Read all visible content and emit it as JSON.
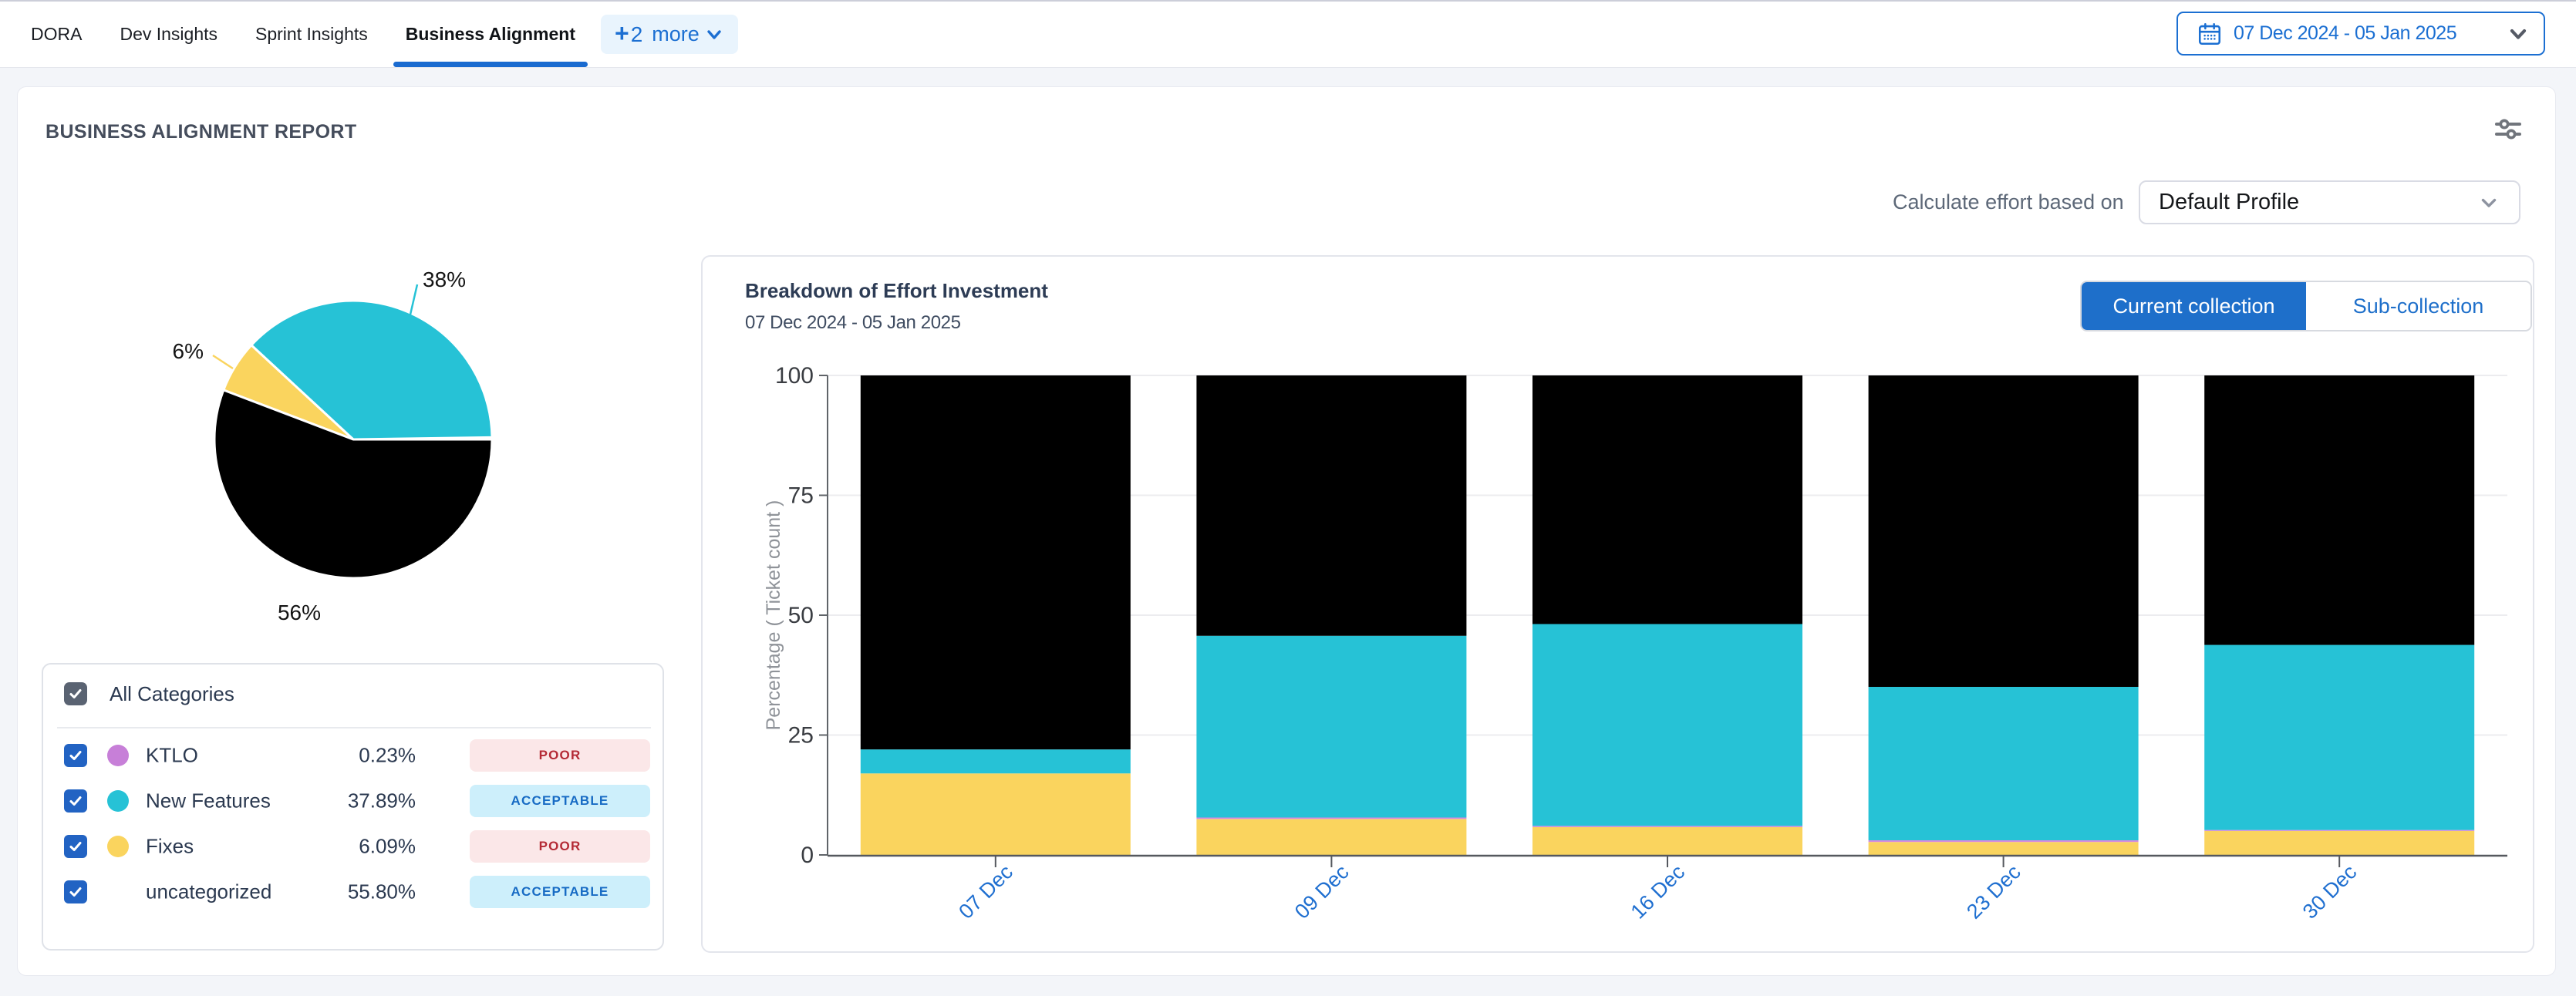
{
  "nav": {
    "tabs": [
      {
        "label": "DORA",
        "active": false
      },
      {
        "label": "Dev Insights",
        "active": false
      },
      {
        "label": "Sprint Insights",
        "active": false
      },
      {
        "label": "Business Alignment",
        "active": true
      }
    ],
    "more": {
      "plus": "+",
      "count": "2",
      "label": "more"
    },
    "date_range": "07 Dec 2024 - 05 Jan 2025"
  },
  "report": {
    "title": "BUSINESS ALIGNMENT REPORT",
    "effort_label": "Calculate effort based on",
    "profile_selected": "Default Profile"
  },
  "categories": {
    "all_label": "All Categories",
    "rows": [
      {
        "name": "KTLO",
        "value": "0.23%",
        "status": "POOR",
        "status_type": "poor",
        "color": "#c77fd8",
        "checked": true
      },
      {
        "name": "New Features",
        "value": "37.89%",
        "status": "ACCEPTABLE",
        "status_type": "acceptable",
        "color": "#26c2d6",
        "checked": true
      },
      {
        "name": "Fixes",
        "value": "6.09%",
        "status": "POOR",
        "status_type": "poor",
        "color": "#fad45e",
        "checked": true
      },
      {
        "name": "uncategorized",
        "value": "55.80%",
        "status": "ACCEPTABLE",
        "status_type": "acceptable",
        "color": null,
        "checked": true
      }
    ]
  },
  "panel": {
    "title": "Breakdown of Effort Investment",
    "subtitle": "07 Dec 2024 - 05 Jan 2025",
    "toggle": [
      {
        "label": "Current collection",
        "active": true
      },
      {
        "label": "Sub-collection",
        "active": false
      }
    ]
  },
  "chart_data": [
    {
      "type": "pie",
      "title": "Category share of effort",
      "slices": [
        {
          "name": "KTLO",
          "value": 0.23,
          "color": "#c77fd8",
          "label": null
        },
        {
          "name": "New Features",
          "value": 37.89,
          "color": "#26c2d6",
          "label": "38%"
        },
        {
          "name": "Fixes",
          "value": 6.09,
          "color": "#fad45e",
          "label": "6%"
        },
        {
          "name": "uncategorized",
          "value": 55.8,
          "color": "#000000",
          "label": "56%"
        }
      ],
      "start_angle_deg": 0,
      "direction": "counterclockwise",
      "legend_position": "below-in-categories-card"
    },
    {
      "type": "bar",
      "stacked": true,
      "title": "Breakdown of Effort Investment",
      "categories": [
        "07 Dec",
        "09 Dec",
        "16 Dec",
        "23 Dec",
        "30 Dec"
      ],
      "series": [
        {
          "name": "Fixes",
          "color": "#fad45e",
          "values": [
            17.0,
            7.5,
            5.8,
            2.7,
            5.0
          ]
        },
        {
          "name": "KTLO",
          "color": "#d58ade",
          "values": [
            0.0,
            0.3,
            0.25,
            0.35,
            0.2
          ]
        },
        {
          "name": "New Features",
          "color": "#26c2d6",
          "values": [
            5.0,
            37.9,
            42.1,
            32.0,
            38.6
          ]
        },
        {
          "name": "uncategorized",
          "color": "#000000",
          "values": [
            78.0,
            54.3,
            51.85,
            64.95,
            56.2
          ]
        }
      ],
      "xlabel": "",
      "ylabel": "Percentage ( Ticket count )",
      "ylim": [
        0,
        100
      ],
      "yticks": [
        0,
        25,
        50,
        75,
        100
      ],
      "grid": true,
      "legend": "none",
      "x_tick_color": "#1f6fd0",
      "y_tick_color": "#3a3d42"
    }
  ]
}
